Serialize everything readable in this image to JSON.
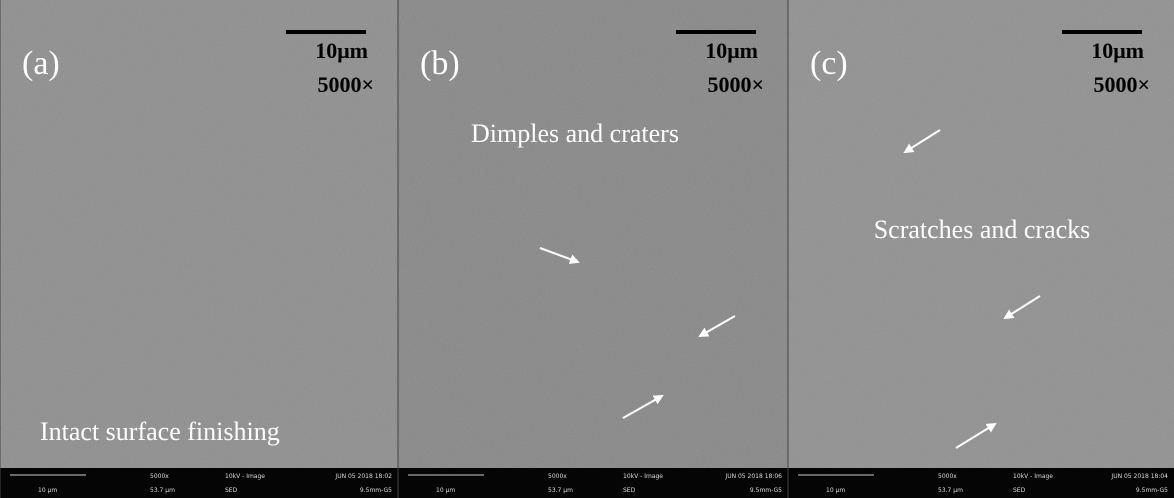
{
  "panels": [
    {
      "label": "(a)",
      "scale_bar": "10μm",
      "magnification": "5000×",
      "annotation": "Intact surface finishing",
      "info_bar": {
        "scale": "10 µm",
        "mag": "5000x",
        "field": "53.7 µm",
        "mode": "10kV - Image",
        "detector": "SED",
        "date": "JUN 05 2018 18:02",
        "wd": "9.5mm-G5"
      }
    },
    {
      "label": "(b)",
      "scale_bar": "10μm",
      "magnification": "5000×",
      "annotation": "Dimples and craters",
      "info_bar": {
        "scale": "10 µm",
        "mag": "5000x",
        "field": "53.7 µm",
        "mode": "10kV - Image",
        "detector": "SED",
        "date": "JUN 05 2018 18:06",
        "wd": "9.5mm-G5"
      }
    },
    {
      "label": "(c)",
      "scale_bar": "10μm",
      "magnification": "5000×",
      "annotation": "Scratches and cracks",
      "info_bar": {
        "scale": "10 µm",
        "mag": "5000x",
        "field": "53.7 µm",
        "mode": "10kV - Image",
        "detector": "SED",
        "date": "JUN 05 2018 18:04",
        "wd": "9.5mm-G5"
      }
    }
  ]
}
